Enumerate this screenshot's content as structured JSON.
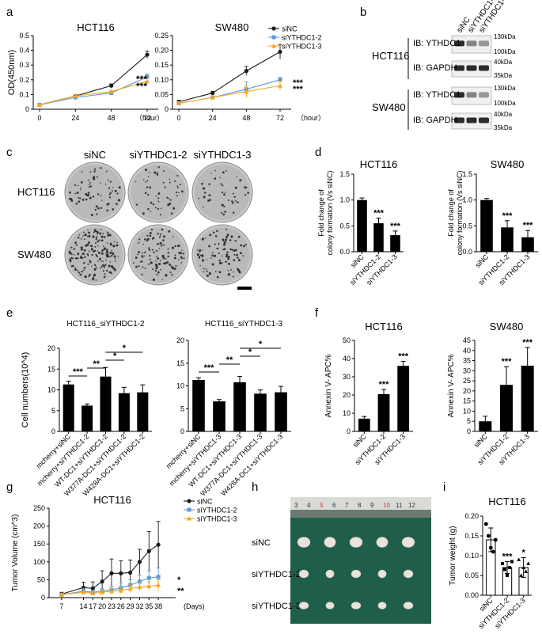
{
  "panel_letters": {
    "a": "a",
    "b": "b",
    "c": "c",
    "d": "d",
    "e": "e",
    "f": "f",
    "g": "g",
    "h": "h",
    "i": "i"
  },
  "colors": {
    "black": "#1a1a1a",
    "blue": "#5b9bd5",
    "orange": "#f5a623",
    "wb_band": "#2b2b2b",
    "dish": "#bdbdbd",
    "tray": "#1f5e4a",
    "tumor": "#e8e4dc"
  },
  "chart_data": [
    {
      "id": "a1",
      "type": "line",
      "title": "HCT116",
      "ylabel": "OD(450nm)",
      "xunit": "（hour）",
      "x": [
        0,
        24,
        48,
        72
      ],
      "ylim": [
        0,
        0.5
      ],
      "yticks": [
        "0",
        "0.1",
        "0.2",
        "0.3",
        "0.4",
        "0.5"
      ],
      "series": [
        {
          "name": "siNC",
          "color": "#1a1a1a",
          "marker": "circle",
          "values": [
            0.03,
            0.09,
            0.16,
            0.37
          ],
          "err": [
            0.005,
            0.01,
            0.012,
            0.025
          ]
        },
        {
          "name": "siYTHDC1-2",
          "color": "#5b9bd5",
          "marker": "square",
          "values": [
            0.03,
            0.08,
            0.11,
            0.22
          ],
          "err": [
            0.005,
            0.008,
            0.01,
            0.02
          ]
        },
        {
          "name": "siYTHDC1-3",
          "color": "#f5a623",
          "marker": "triangle",
          "values": [
            0.03,
            0.09,
            0.12,
            0.19
          ],
          "err": [
            0.005,
            0.01,
            0.01,
            0.02
          ]
        }
      ],
      "annotations": [
        "***",
        "***"
      ]
    },
    {
      "id": "a2",
      "type": "line",
      "title": "SW480",
      "ylabel": "",
      "xunit": "（hour）",
      "x": [
        0,
        24,
        48,
        72
      ],
      "ylim": [
        0,
        0.25
      ],
      "yticks": [
        "0",
        "0.05",
        "0.10",
        "0.15",
        "0.20",
        "0.25"
      ],
      "series": [
        {
          "name": "siNC",
          "color": "#1a1a1a",
          "marker": "circle",
          "values": [
            0.025,
            0.055,
            0.13,
            0.195
          ],
          "err": [
            0.006,
            0.006,
            0.015,
            0.025
          ]
        },
        {
          "name": "siYTHDC1-2",
          "color": "#5b9bd5",
          "marker": "square",
          "values": [
            0.02,
            0.04,
            0.068,
            0.1
          ],
          "err": [
            0.006,
            0.006,
            0.025,
            0.008
          ]
        },
        {
          "name": "siYTHDC1-3",
          "color": "#f5a623",
          "marker": "triangle",
          "values": [
            0.02,
            0.04,
            0.06,
            0.08
          ],
          "err": [
            0.006,
            0.006,
            0.02,
            0.015
          ]
        }
      ],
      "annotations": [
        "***",
        "***"
      ]
    },
    {
      "id": "d1",
      "type": "bar",
      "title": "HCT116",
      "ylabel": "Fold change of colony formation (Vs siNC)",
      "categories": [
        "siNC",
        "siYTHDC1-2",
        "siYTHDC1-3"
      ],
      "values": [
        1.0,
        0.55,
        0.32
      ],
      "err": [
        0.04,
        0.1,
        0.08
      ],
      "ylim": [
        0,
        1.5
      ],
      "yticks": [
        "0.0",
        "0.5",
        "1.0",
        "1.5"
      ],
      "annotations": [
        "",
        "***",
        "***"
      ]
    },
    {
      "id": "d2",
      "type": "bar",
      "title": "SW480",
      "ylabel": "Fold change of colony formation (Vs siNC)",
      "categories": [
        "siNC",
        "siYTHDC1-2",
        "siYTHDC1-3"
      ],
      "values": [
        1.0,
        0.47,
        0.28
      ],
      "err": [
        0.03,
        0.13,
        0.13
      ],
      "ylim": [
        0,
        1.5
      ],
      "yticks": [
        "0.0",
        "0.5",
        "1.0",
        "1.5"
      ],
      "annotations": [
        "",
        "***",
        "***"
      ]
    },
    {
      "id": "e1",
      "type": "bar",
      "title": "HCT116_siYTHDC1-2",
      "ylabel": "Cell numbers(10^4)",
      "categories": [
        "mcherry+siNC",
        "mcherry+siYTHDC1-2",
        "WT-DC1+siYTHDC1-2",
        "W377A-DC1+siYTHDC1-2",
        "W428A-DC1+siYTHDC1-2"
      ],
      "values": [
        11.3,
        6.2,
        13.2,
        9.2,
        9.4
      ],
      "err": [
        0.8,
        0.4,
        2.2,
        1.4,
        1.8
      ],
      "ylim": [
        0,
        20
      ],
      "yticks": [
        "0",
        "5",
        "10",
        "15",
        "20"
      ],
      "brackets": [
        {
          "from": 0,
          "to": 1,
          "label": "***",
          "level": 0
        },
        {
          "from": 1,
          "to": 2,
          "label": "**",
          "level": 1
        },
        {
          "from": 2,
          "to": 3,
          "label": "*",
          "level": 2
        },
        {
          "from": 2,
          "to": 4,
          "label": "*",
          "level": 3
        }
      ]
    },
    {
      "id": "e2",
      "type": "bar",
      "title": "HCT116_siYTHDC1-3",
      "ylabel": "",
      "categories": [
        "mcherry+siNC",
        "mcherry+siYTHDC1-3",
        "WT-DC1+siYTHDC1-3",
        "W377A-DC1+siYTHDC1-3",
        "W428A-DC1+siYTHDC1-3"
      ],
      "values": [
        11.3,
        6.6,
        10.8,
        8.3,
        8.6
      ],
      "err": [
        0.5,
        0.4,
        1.3,
        0.8,
        1.3
      ],
      "ylim": [
        0,
        20
      ],
      "yticks": [
        "0",
        "5",
        "10",
        "15",
        "20"
      ],
      "brackets": [
        {
          "from": 0,
          "to": 1,
          "label": "***",
          "level": 0
        },
        {
          "from": 1,
          "to": 2,
          "label": "**",
          "level": 1
        },
        {
          "from": 2,
          "to": 3,
          "label": "*",
          "level": 2
        },
        {
          "from": 2,
          "to": 4,
          "label": "*",
          "level": 3
        }
      ]
    },
    {
      "id": "f1",
      "type": "bar",
      "title": "HCT116",
      "ylabel": "Annexin V- APC%",
      "categories": [
        "siNC",
        "siYTHDC1-2",
        "siYTHDC1-3"
      ],
      "values": [
        7.0,
        20.5,
        36.0
      ],
      "err": [
        1.2,
        2.5,
        2.5
      ],
      "ylim": [
        0,
        50
      ],
      "yticks": [
        "0",
        "10",
        "20",
        "30",
        "40",
        "50"
      ],
      "annotations": [
        "",
        "***",
        "***"
      ]
    },
    {
      "id": "f2",
      "type": "bar",
      "title": "SW480",
      "ylabel": "Annexin V- APC%",
      "categories": [
        "siNC",
        "siYTHDC1-2",
        "siYTHDC1-3"
      ],
      "values": [
        5.0,
        23.0,
        32.5
      ],
      "err": [
        2.5,
        9.0,
        9.0
      ],
      "ylim": [
        0,
        45
      ],
      "yticks": [
        "0",
        "5",
        "10",
        "15",
        "20",
        "25",
        "30",
        "35",
        "40",
        "45"
      ],
      "annotations": [
        "",
        "***",
        "***"
      ]
    },
    {
      "id": "g",
      "type": "line",
      "title": "HCT116",
      "ylabel": "Tumor Volume (cm^3)",
      "xunit": "(Days)",
      "x": [
        7,
        14,
        17,
        20,
        23,
        26,
        29,
        32,
        35,
        38
      ],
      "ylim": [
        0,
        250
      ],
      "yticks": [
        "0",
        "50",
        "100",
        "150",
        "200",
        "250"
      ],
      "series": [
        {
          "name": "siNC",
          "color": "#1a1a1a",
          "marker": "circle",
          "values": [
            10,
            28,
            26,
            45,
            68,
            68,
            70,
            100,
            130,
            148
          ],
          "err": [
            5,
            15,
            18,
            30,
            40,
            35,
            35,
            35,
            55,
            65
          ]
        },
        {
          "name": "siYTHDC1-2",
          "color": "#5b9bd5",
          "marker": "square",
          "values": [
            8,
            18,
            15,
            18,
            22,
            27,
            35,
            45,
            55,
            58
          ],
          "err": [
            4,
            8,
            6,
            8,
            10,
            15,
            15,
            18,
            20,
            25
          ]
        },
        {
          "name": "siYTHDC1-3",
          "color": "#f5a623",
          "marker": "triangle",
          "values": [
            8,
            15,
            12,
            15,
            18,
            20,
            25,
            30,
            32,
            35
          ],
          "err": [
            4,
            6,
            5,
            6,
            8,
            8,
            10,
            10,
            12,
            15
          ]
        }
      ],
      "annotations": [
        "*",
        "**"
      ]
    },
    {
      "id": "i",
      "type": "scatter",
      "title": "HCT116",
      "ylabel": "Tumor weight (g)",
      "categories": [
        "siNC",
        "siYTHDC1-2",
        "siYTHDC1-3"
      ],
      "values": [
        0.14,
        0.07,
        0.07
      ],
      "err": [
        0.03,
        0.015,
        0.025
      ],
      "ylim": [
        0,
        0.2
      ],
      "yticks": [
        "0.00",
        "0.05",
        "0.10",
        "0.15",
        "0.20"
      ],
      "points": [
        [
          0.18,
          0.15,
          0.12,
          0.11,
          0.14
        ],
        [
          0.08,
          0.065,
          0.05,
          0.07,
          0.085
        ],
        [
          0.09,
          0.05,
          0.07,
          0.06,
          0.08
        ]
      ],
      "annotations": [
        "",
        "***",
        "*"
      ]
    }
  ],
  "western": {
    "header": [
      "siNC",
      "siYTHDC1-2",
      "siYTHDC1-3"
    ],
    "rows": [
      {
        "cell": "HCT116",
        "ib": "IB: YTHDC1",
        "markers": [
          "130kDa",
          "100kDa"
        ]
      },
      {
        "cell": "",
        "ib": "IB: GAPDH",
        "markers": [
          "40kDa",
          "35kDa"
        ]
      },
      {
        "cell": "SW480",
        "ib": "IB: YTHDC1",
        "markers": [
          "130kDa",
          "100kDa"
        ]
      },
      {
        "cell": "",
        "ib": "IB: GAPDH",
        "markers": [
          "40kDa",
          "35kDa"
        ]
      }
    ]
  },
  "colony": {
    "columns": [
      "siNC",
      "siYTHDC1-2",
      "siYTHDC1-3"
    ],
    "rows": [
      "HCT116",
      "SW480"
    ]
  },
  "tumor_photo": {
    "ruler": [
      "3",
      "4",
      "5",
      "6",
      "7",
      "8",
      "9",
      "10",
      "11",
      "12"
    ],
    "rows": [
      "siNC",
      "siYTHDC1-2",
      "siYTHDC1-3"
    ]
  }
}
